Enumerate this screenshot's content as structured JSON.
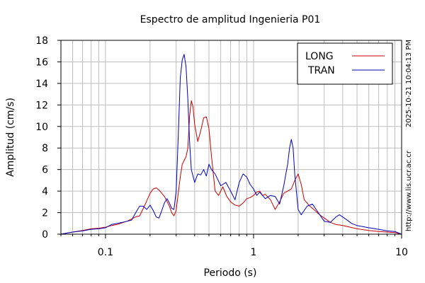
{
  "chart_data": {
    "type": "line",
    "title": "Espectro de amplitud Ingenieria P01",
    "xlabel": "Periodo (s)",
    "ylabel": "Amplitud (cm/s)",
    "x_scale": "log",
    "xlim": [
      0.05,
      10
    ],
    "ylim": [
      0,
      18
    ],
    "x_ticks": [
      0.1,
      1,
      10
    ],
    "x_tick_labels": [
      "0.1",
      "1",
      "10"
    ],
    "y_ticks": [
      0,
      2,
      4,
      6,
      8,
      10,
      12,
      14,
      16,
      18
    ],
    "y_tick_labels": [
      "0",
      "2",
      "4",
      "6",
      "8",
      "10",
      "12",
      "14",
      "16",
      "18"
    ],
    "grid": true,
    "legend_position": "top-right",
    "side_text": [
      "2025-10-21 10:04:13 PM",
      "http://www.lis.ucr.ac.cr"
    ],
    "series": [
      {
        "name": "LONG",
        "color": "#cc0000",
        "points": [
          [
            0.05,
            0.0
          ],
          [
            0.06,
            0.2
          ],
          [
            0.07,
            0.35
          ],
          [
            0.08,
            0.5
          ],
          [
            0.09,
            0.55
          ],
          [
            0.1,
            0.65
          ],
          [
            0.11,
            0.8
          ],
          [
            0.12,
            0.9
          ],
          [
            0.14,
            1.2
          ],
          [
            0.16,
            1.6
          ],
          [
            0.17,
            1.7
          ],
          [
            0.18,
            2.4
          ],
          [
            0.19,
            3.1
          ],
          [
            0.2,
            3.8
          ],
          [
            0.21,
            4.2
          ],
          [
            0.22,
            4.3
          ],
          [
            0.23,
            4.1
          ],
          [
            0.25,
            3.5
          ],
          [
            0.27,
            2.6
          ],
          [
            0.28,
            2.0
          ],
          [
            0.29,
            1.7
          ],
          [
            0.3,
            2.2
          ],
          [
            0.31,
            3.8
          ],
          [
            0.32,
            5.3
          ],
          [
            0.33,
            6.5
          ],
          [
            0.35,
            7.2
          ],
          [
            0.36,
            8.0
          ],
          [
            0.37,
            11.0
          ],
          [
            0.38,
            12.4
          ],
          [
            0.39,
            11.8
          ],
          [
            0.4,
            10.2
          ],
          [
            0.42,
            8.6
          ],
          [
            0.44,
            9.6
          ],
          [
            0.46,
            10.8
          ],
          [
            0.48,
            10.9
          ],
          [
            0.5,
            9.8
          ],
          [
            0.52,
            7.2
          ],
          [
            0.55,
            4.0
          ],
          [
            0.58,
            3.6
          ],
          [
            0.62,
            4.4
          ],
          [
            0.66,
            3.5
          ],
          [
            0.7,
            3.0
          ],
          [
            0.75,
            2.7
          ],
          [
            0.8,
            2.6
          ],
          [
            0.85,
            2.9
          ],
          [
            0.9,
            3.3
          ],
          [
            0.95,
            3.4
          ],
          [
            1.0,
            3.6
          ],
          [
            1.05,
            3.9
          ],
          [
            1.1,
            4.0
          ],
          [
            1.15,
            3.6
          ],
          [
            1.2,
            3.7
          ],
          [
            1.3,
            3.2
          ],
          [
            1.4,
            2.3
          ],
          [
            1.5,
            3.0
          ],
          [
            1.6,
            3.8
          ],
          [
            1.7,
            4.0
          ],
          [
            1.8,
            4.2
          ],
          [
            1.9,
            5.0
          ],
          [
            2.0,
            5.6
          ],
          [
            2.1,
            4.6
          ],
          [
            2.2,
            3.2
          ],
          [
            2.4,
            2.6
          ],
          [
            2.6,
            2.2
          ],
          [
            2.8,
            1.8
          ],
          [
            3.0,
            1.5
          ],
          [
            3.3,
            1.1
          ],
          [
            3.6,
            0.9
          ],
          [
            4.0,
            0.8
          ],
          [
            4.5,
            0.65
          ],
          [
            5.0,
            0.5
          ],
          [
            6.0,
            0.35
          ],
          [
            7.0,
            0.25
          ],
          [
            8.0,
            0.2
          ],
          [
            9.0,
            0.15
          ],
          [
            10.0,
            0.0
          ]
        ]
      },
      {
        "name": "TRAN",
        "color": "#0000bb",
        "points": [
          [
            0.05,
            0.0
          ],
          [
            0.06,
            0.2
          ],
          [
            0.07,
            0.3
          ],
          [
            0.08,
            0.45
          ],
          [
            0.09,
            0.5
          ],
          [
            0.1,
            0.6
          ],
          [
            0.11,
            0.9
          ],
          [
            0.12,
            1.0
          ],
          [
            0.13,
            1.1
          ],
          [
            0.15,
            1.3
          ],
          [
            0.16,
            2.0
          ],
          [
            0.17,
            2.6
          ],
          [
            0.18,
            2.6
          ],
          [
            0.19,
            2.3
          ],
          [
            0.2,
            2.7
          ],
          [
            0.21,
            2.2
          ],
          [
            0.22,
            1.6
          ],
          [
            0.23,
            1.5
          ],
          [
            0.24,
            2.2
          ],
          [
            0.25,
            2.9
          ],
          [
            0.26,
            3.3
          ],
          [
            0.27,
            2.9
          ],
          [
            0.28,
            2.4
          ],
          [
            0.29,
            2.3
          ],
          [
            0.3,
            4.0
          ],
          [
            0.31,
            9.0
          ],
          [
            0.32,
            14.5
          ],
          [
            0.33,
            16.2
          ],
          [
            0.34,
            16.7
          ],
          [
            0.35,
            15.5
          ],
          [
            0.36,
            12.5
          ],
          [
            0.37,
            8.5
          ],
          [
            0.38,
            6.0
          ],
          [
            0.4,
            4.8
          ],
          [
            0.42,
            5.6
          ],
          [
            0.44,
            5.5
          ],
          [
            0.46,
            6.0
          ],
          [
            0.48,
            5.4
          ],
          [
            0.5,
            6.5
          ],
          [
            0.52,
            6.0
          ],
          [
            0.55,
            5.6
          ],
          [
            0.6,
            4.5
          ],
          [
            0.65,
            4.8
          ],
          [
            0.7,
            4.0
          ],
          [
            0.75,
            3.2
          ],
          [
            0.8,
            4.8
          ],
          [
            0.85,
            5.6
          ],
          [
            0.9,
            5.3
          ],
          [
            0.95,
            4.6
          ],
          [
            1.0,
            4.2
          ],
          [
            1.05,
            3.6
          ],
          [
            1.1,
            3.9
          ],
          [
            1.2,
            3.3
          ],
          [
            1.3,
            3.6
          ],
          [
            1.4,
            3.5
          ],
          [
            1.5,
            2.8
          ],
          [
            1.6,
            4.5
          ],
          [
            1.7,
            6.5
          ],
          [
            1.75,
            8.0
          ],
          [
            1.8,
            8.8
          ],
          [
            1.85,
            8.0
          ],
          [
            1.9,
            5.5
          ],
          [
            2.0,
            2.3
          ],
          [
            2.1,
            1.8
          ],
          [
            2.3,
            2.6
          ],
          [
            2.5,
            2.8
          ],
          [
            2.8,
            1.8
          ],
          [
            3.0,
            1.2
          ],
          [
            3.3,
            1.1
          ],
          [
            3.6,
            1.6
          ],
          [
            3.8,
            1.8
          ],
          [
            4.2,
            1.4
          ],
          [
            4.6,
            1.0
          ],
          [
            5.0,
            0.8
          ],
          [
            6.0,
            0.6
          ],
          [
            7.0,
            0.45
          ],
          [
            8.0,
            0.3
          ],
          [
            9.0,
            0.25
          ],
          [
            10.0,
            0.0
          ]
        ]
      }
    ]
  }
}
